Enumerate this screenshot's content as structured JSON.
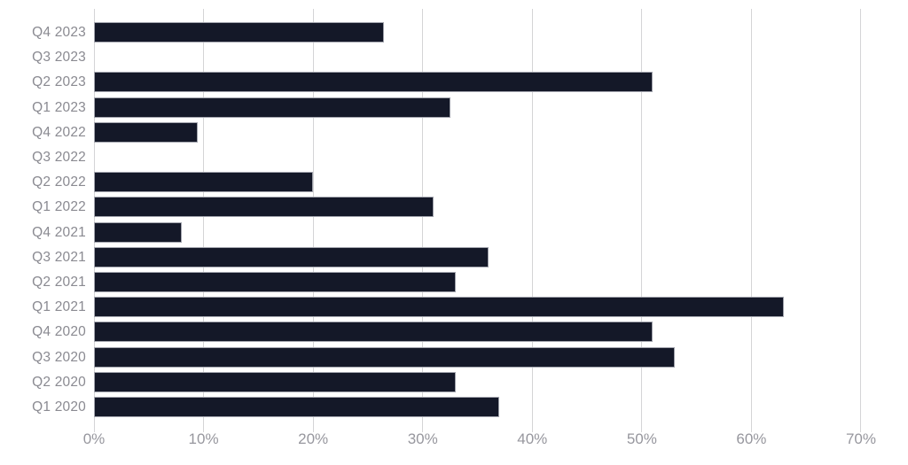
{
  "chart_data": {
    "type": "bar",
    "orientation": "horizontal",
    "title": "",
    "xlabel": "",
    "ylabel": "",
    "grid": true,
    "legend": false,
    "xlim": [
      0,
      70
    ],
    "x_ticks": [
      "0%",
      "10%",
      "20%",
      "30%",
      "40%",
      "50%",
      "60%",
      "70%"
    ],
    "x_tick_values": [
      0,
      10,
      20,
      30,
      40,
      50,
      60,
      70
    ],
    "categories": [
      "Q4 2023",
      "Q3 2023",
      "Q2 2023",
      "Q1 2023",
      "Q4 2022",
      "Q3 2022",
      "Q2 2022",
      "Q1 2022",
      "Q4 2021",
      "Q3 2021",
      "Q2 2021",
      "Q1 2021",
      "Q4 2020",
      "Q3 2020",
      "Q2 2020",
      "Q1 2020"
    ],
    "values": [
      26.5,
      0,
      51,
      32.5,
      9.5,
      0,
      20,
      31,
      8,
      36,
      33,
      63,
      51,
      53,
      33,
      37
    ],
    "value_unit": "%",
    "bar_color": "#141828",
    "bar_border_color": "#a3a5ae",
    "gridline_color": "#d4d4d6",
    "y_label_color": "#8a8a91",
    "x_label_color": "#97979e",
    "background_color": "#ffffff"
  }
}
